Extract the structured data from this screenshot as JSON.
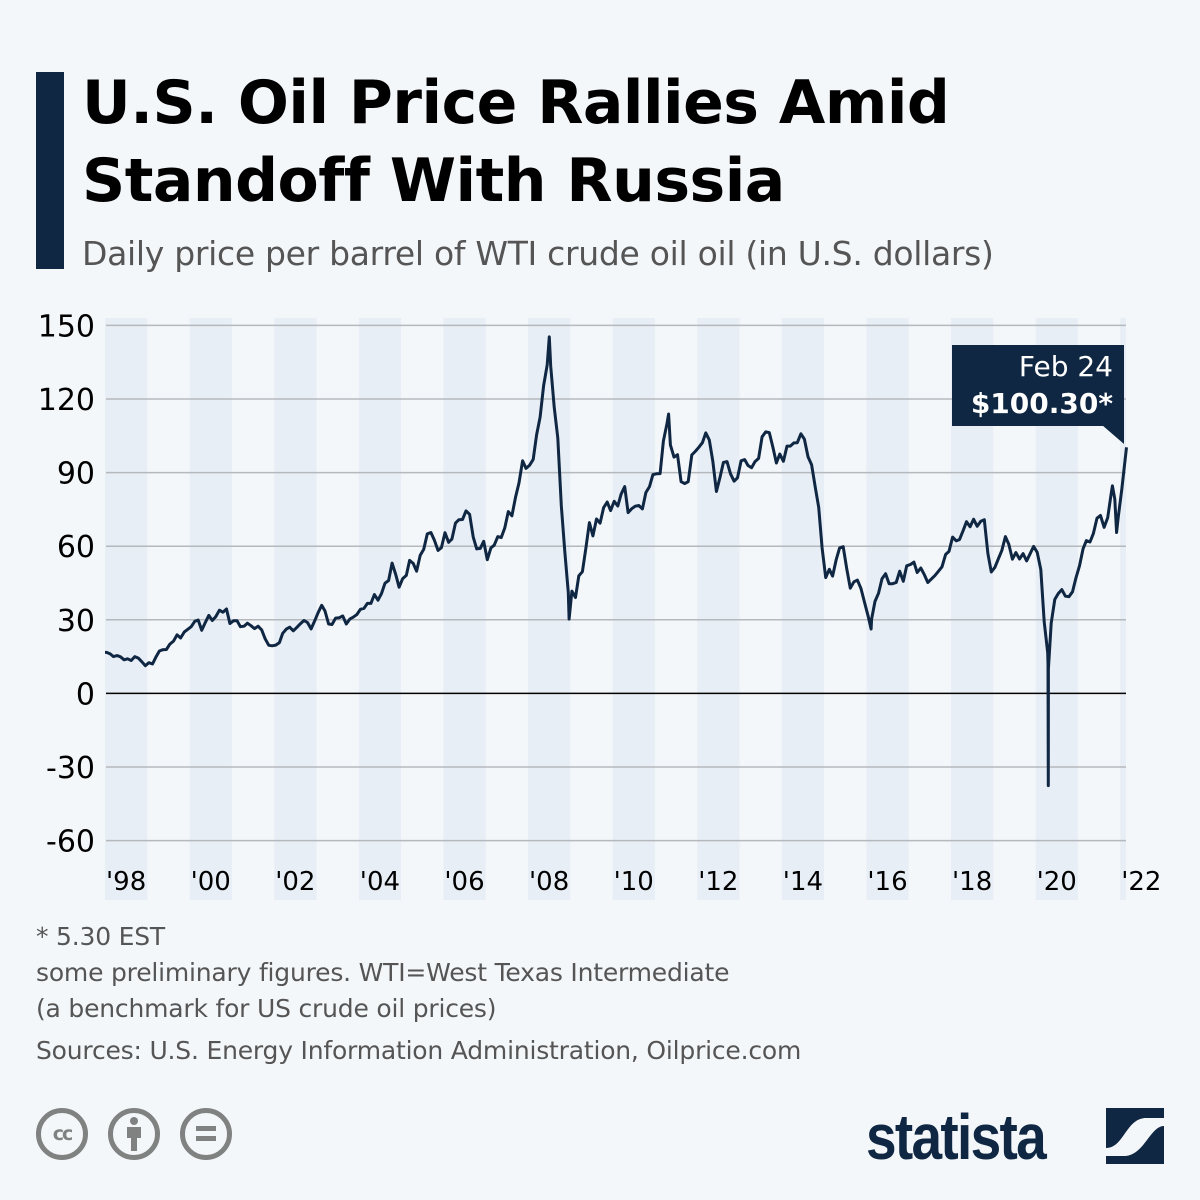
{
  "title": "U.S. Oil Price Rallies Amid Standoff With Russia",
  "subtitle": "Daily price per barrel of WTI crude oil oil (in U.S. dollars)",
  "colors": {
    "line": "#0f2742",
    "background": "#f4f7fa",
    "band": "#e8eef6",
    "accent_bar": "#0f2742"
  },
  "chart_data": {
    "type": "line",
    "title": "",
    "xlabel": "",
    "ylabel": "",
    "ylim": [
      -60,
      150
    ],
    "yticks": [
      "150",
      "120",
      "90",
      "60",
      "30",
      "0",
      "-30",
      "-60"
    ],
    "ytick_values": [
      150,
      120,
      90,
      60,
      30,
      0,
      -30,
      -60
    ],
    "xlim": [
      "1998-01-01",
      "2022-02-24"
    ],
    "xticks": [
      "'98",
      "'00",
      "'02",
      "'04",
      "'06",
      "'08",
      "'10",
      "'12",
      "'14",
      "'16",
      "'18",
      "'20",
      "'22"
    ],
    "xtick_years": [
      1998,
      2000,
      2002,
      2004,
      2006,
      2008,
      2010,
      2012,
      2014,
      2016,
      2018,
      2020,
      2022
    ],
    "grid": true,
    "alternating_year_bands": true,
    "series": [
      {
        "monthly": {
          "1998": [
            16.7,
            16.1,
            15.0,
            15.4,
            14.9,
            13.7,
            14.1,
            13.4,
            15.0,
            14.4,
            12.9,
            11.3
          ],
          "1999": [
            12.5,
            12.0,
            14.7,
            17.3,
            17.8,
            17.9,
            20.1,
            21.3,
            23.9,
            22.6,
            25.0,
            26.1
          ],
          "2000": [
            27.2,
            29.4,
            29.9,
            25.7,
            28.8,
            31.8,
            29.7,
            31.3,
            33.9,
            33.1,
            34.4,
            28.5
          ],
          "2001": [
            29.6,
            29.6,
            27.2,
            27.4,
            28.6,
            27.6,
            26.4,
            27.4,
            25.9,
            22.2,
            19.6,
            19.4
          ],
          "2002": [
            19.7,
            20.7,
            24.5,
            26.2,
            27.0,
            25.5,
            26.9,
            28.4,
            29.7,
            28.9,
            26.3,
            29.4
          ],
          "2003": [
            32.9,
            35.9,
            33.6,
            28.3,
            28.1,
            30.7,
            30.8,
            31.6,
            28.3,
            30.3,
            31.1,
            32.1
          ],
          "2004": [
            34.3,
            34.7,
            36.7,
            36.7,
            40.3,
            38.0,
            40.7,
            44.9,
            46.0,
            53.1,
            48.5,
            43.3
          ],
          "2005": [
            46.8,
            48.1,
            54.2,
            53.0,
            49.8,
            56.3,
            58.7,
            65.0,
            65.6,
            62.4,
            58.3,
            59.4
          ],
          "2006": [
            65.5,
            61.6,
            62.9,
            69.4,
            70.8,
            70.9,
            74.4,
            73.0,
            63.8,
            58.9,
            59.1,
            62.0
          ],
          "2007": [
            54.5,
            59.3,
            60.4,
            63.9,
            63.5,
            67.5,
            74.1,
            72.4,
            79.9,
            85.8,
            94.8,
            91.7
          ],
          "2008": [
            93.0,
            95.4,
            105.4,
            112.6,
            125.4,
            133.9,
            133.4,
            116.7,
            104.1,
            76.6,
            57.3,
            41.1
          ],
          "2009": [
            41.7,
            39.1,
            47.9,
            49.6,
            59.0,
            69.6,
            64.2,
            71.1,
            69.4,
            75.7,
            78.0,
            74.5
          ],
          "2010": [
            78.3,
            76.4,
            81.2,
            84.3,
            73.7,
            75.3,
            76.3,
            76.6,
            75.2,
            81.9,
            84.3,
            89.2
          ],
          "2011": [
            89.5,
            89.6,
            102.9,
            110.0,
            101.3,
            96.3,
            97.3,
            86.3,
            85.5,
            86.3,
            97.2,
            98.6
          ],
          "2012": [
            100.3,
            102.2,
            106.2,
            103.3,
            94.7,
            82.3,
            87.9,
            94.1,
            94.5,
            89.5,
            86.5,
            87.9
          ],
          "2013": [
            94.8,
            95.3,
            92.9,
            92.0,
            94.5,
            95.8,
            104.6,
            106.6,
            106.3,
            100.5,
            93.9,
            97.6
          ],
          "2014": [
            94.6,
            100.8,
            100.8,
            102.1,
            102.2,
            105.8,
            103.6,
            96.5,
            93.2,
            84.4,
            75.8,
            59.3
          ],
          "2015": [
            47.2,
            50.6,
            47.8,
            54.5,
            59.3,
            59.8,
            50.9,
            42.9,
            45.5,
            46.2,
            42.7,
            37.3
          ],
          "2016": [
            31.7,
            30.3,
            37.5,
            40.8,
            46.7,
            48.8,
            44.7,
            44.7,
            45.2,
            49.8,
            45.7,
            52.0
          ],
          "2017": [
            52.5,
            53.5,
            49.3,
            51.1,
            48.5,
            45.2,
            46.6,
            48.0,
            49.8,
            51.6,
            56.6,
            57.9
          ],
          "2018": [
            63.7,
            62.2,
            62.7,
            66.3,
            70.0,
            67.9,
            71.0,
            68.1,
            70.2,
            70.8,
            57.0,
            49.5
          ],
          "2019": [
            51.4,
            55.0,
            58.2,
            63.9,
            60.8,
            54.7,
            57.4,
            54.8,
            57.0,
            54.0,
            57.0,
            59.9
          ],
          "2020": [
            57.5,
            50.5,
            29.2,
            16.6,
            28.6,
            38.3,
            40.7,
            42.3,
            39.6,
            39.4,
            41.4,
            47.0
          ],
          "2021": [
            52.0,
            59.0,
            62.3,
            61.7,
            65.2,
            71.4,
            72.5,
            67.7,
            71.6,
            81.5,
            79.2,
            71.7
          ],
          "2022": [
            83.2
          ]
        },
        "daily_extremes": [
          [
            "2008-07-03",
            145.3
          ],
          [
            "2008-12-22",
            30.3
          ],
          [
            "2011-04-29",
            113.9
          ],
          [
            "2016-02-11",
            26.2
          ],
          [
            "2020-04-17",
            12.0
          ],
          [
            "2020-04-20",
            -37.6
          ],
          [
            "2020-04-21",
            10.0
          ],
          [
            "2021-10-26",
            84.6
          ],
          [
            "2021-12-01",
            65.6
          ],
          [
            "2022-02-24",
            100.3
          ]
        ]
      }
    ],
    "annotation": {
      "date_label": "Feb 24",
      "value_label": "$100.30*"
    }
  },
  "footnotes": {
    "asterisk": "* 5.30 EST",
    "note_line1": "some preliminary figures. WTI=West Texas Intermediate",
    "note_line2": "(a benchmark for US crude oil prices)",
    "sources": "Sources: U.S. Energy Information Administration, Oilprice.com"
  },
  "license_icons": [
    "cc-icon",
    "attribution-icon",
    "no-derivatives-icon"
  ],
  "brand": "statista"
}
